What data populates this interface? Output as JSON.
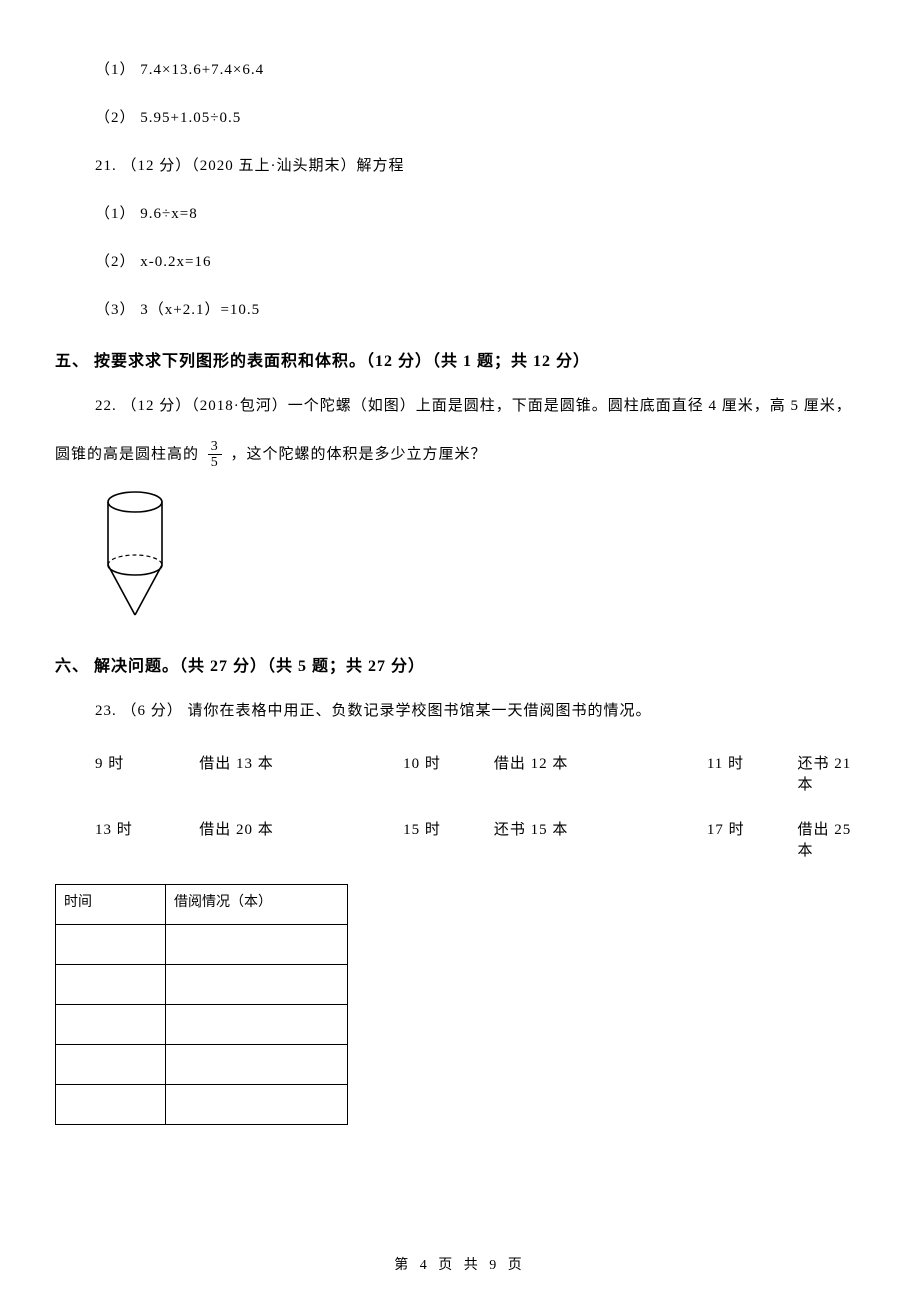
{
  "q20": {
    "sub1": "（1） 7.4×13.6+7.4×6.4",
    "sub2": "（2） 5.95+1.05÷0.5"
  },
  "q21": {
    "header": "21. （12 分）（2020 五上·汕头期末）解方程",
    "sub1": "（1） 9.6÷x=8",
    "sub2": "（2） x-0.2x=16",
    "sub3": "（3） 3（x+2.1）=10.5"
  },
  "section5": {
    "heading": "五、 按要求求下列图形的表面积和体积。（12 分）（共 1 题；共 12 分）"
  },
  "q22": {
    "line1": "22. （12 分）（2018·包河）一个陀螺（如图）上面是圆柱，下面是圆锥。圆柱底面直径 4 厘米，高 5 厘米，",
    "line2a": "圆锥的高是圆柱高的 ",
    "frac_num": "3",
    "frac_den": "5",
    "line2b": " ，这个陀螺的体积是多少立方厘米？"
  },
  "section6": {
    "heading": "六、 解决问题。（共 27 分）（共 5 题；共 27 分）"
  },
  "q23": {
    "header": "23. （6 分） 请你在表格中用正、负数记录学校图书馆某一天借阅图书的情况。",
    "rows": [
      {
        "t1": "9 时",
        "v1": "借出 13 本",
        "t2": "10 时",
        "v2": "借出 12 本",
        "t3": "11 时",
        "v3": "还书 21 本"
      },
      {
        "t1": "13 时",
        "v1": "借出 20 本",
        "t2": "15 时",
        "v2": "还书 15 本",
        "t3": "17 时",
        "v3": "借出 25 本"
      }
    ],
    "table_headers": {
      "c1": "时间",
      "c2": "借阅情况（本）"
    }
  },
  "footer": "第 4 页 共 9 页",
  "figure": {
    "stroke": "#000000",
    "stroke_width": 1.6
  }
}
